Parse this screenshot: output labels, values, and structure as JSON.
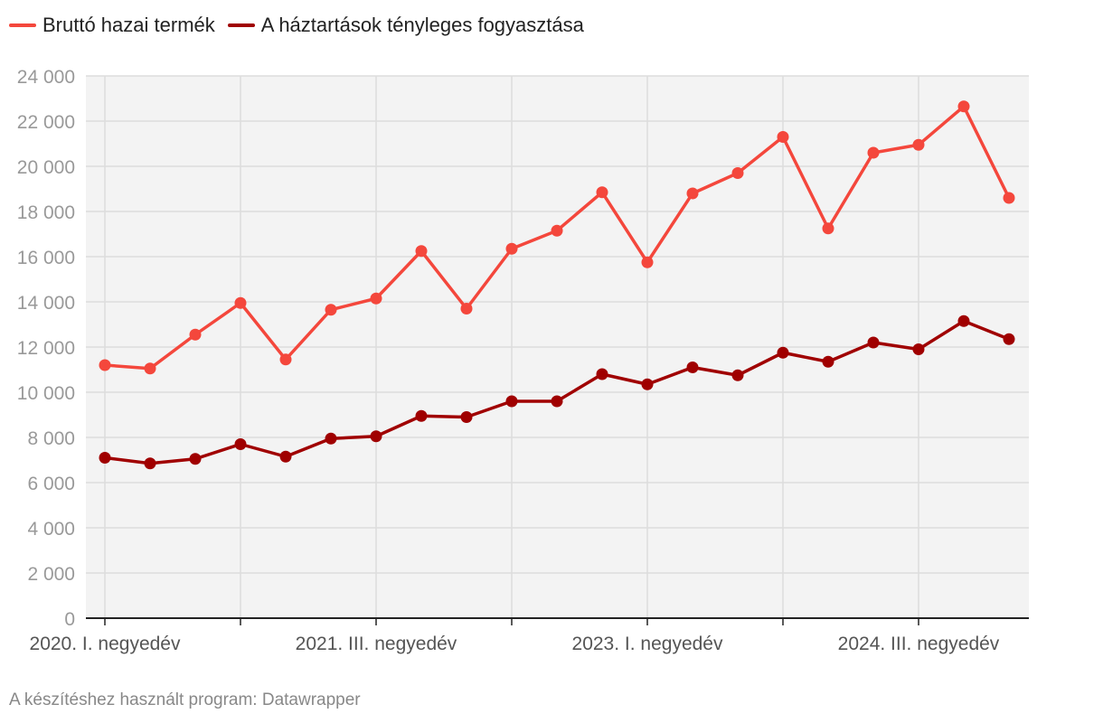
{
  "chart_data": {
    "type": "line",
    "title": "",
    "xlabel": "",
    "ylabel": "",
    "ylim": [
      0,
      24000
    ],
    "yticks": [
      0,
      2000,
      4000,
      6000,
      8000,
      10000,
      12000,
      14000,
      16000,
      18000,
      20000,
      22000,
      24000
    ],
    "ytick_labels": [
      "0",
      "2 000",
      "4 000",
      "6 000",
      "8 000",
      "10 000",
      "12 000",
      "14 000",
      "16 000",
      "18 000",
      "20 000",
      "22 000",
      "24 000"
    ],
    "x_tick_labels": [
      {
        "index": 0,
        "label": "2020. I. negyedév"
      },
      {
        "index": 6,
        "label": "2021. III. negyedév"
      },
      {
        "index": 12,
        "label": "2023. I. negyedév"
      },
      {
        "index": 18,
        "label": "2024. III. negyedév"
      }
    ],
    "n_points": 21,
    "series": [
      {
        "name": "Bruttó hazai termék",
        "color": "#f4473c",
        "values": [
          11200,
          11050,
          12550,
          13950,
          11450,
          13650,
          14150,
          16250,
          13700,
          16350,
          17150,
          18850,
          15750,
          18800,
          19700,
          21300,
          17250,
          20600,
          20950,
          22650,
          18600
        ]
      },
      {
        "name": "A háztartások tényleges fogyasztása",
        "color": "#a00000",
        "values": [
          7100,
          6850,
          7050,
          7700,
          7150,
          7950,
          8050,
          8950,
          8900,
          9600,
          9600,
          10800,
          10350,
          11100,
          10750,
          11750,
          11350,
          12200,
          11900,
          13150,
          12350
        ]
      }
    ],
    "legend_position": "top-left",
    "grid": true
  },
  "footer": "A készítéshez használt program: Datawrapper"
}
